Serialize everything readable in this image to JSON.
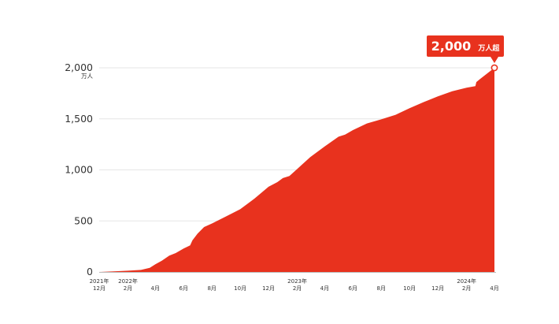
{
  "chart_data": {
    "type": "area",
    "title": "",
    "xlabel": "",
    "ylabel": "",
    "y_unit": "万人",
    "ylim": [
      0,
      2000
    ],
    "y_ticks": [
      {
        "value": 0,
        "label": "0"
      },
      {
        "value": 500,
        "label": "500"
      },
      {
        "value": 1000,
        "label": "1,000"
      },
      {
        "value": 1500,
        "label": "1,500"
      },
      {
        "value": 2000,
        "label": "2,000"
      }
    ],
    "x_ticks": [
      {
        "date": "2021-12",
        "lines": [
          "2021年",
          "12月"
        ]
      },
      {
        "date": "2022-02",
        "lines": [
          "2022年",
          "2月"
        ]
      },
      {
        "date": "2022-04",
        "lines": [
          "4月"
        ]
      },
      {
        "date": "2022-06",
        "lines": [
          "6月"
        ]
      },
      {
        "date": "2022-08",
        "lines": [
          "8月"
        ]
      },
      {
        "date": "2022-10",
        "lines": [
          "10月"
        ]
      },
      {
        "date": "2022-12",
        "lines": [
          "12月"
        ]
      },
      {
        "date": "2023-02",
        "lines": [
          "2023年",
          "2月"
        ]
      },
      {
        "date": "2023-04",
        "lines": [
          "4月"
        ]
      },
      {
        "date": "2023-06",
        "lines": [
          "6月"
        ]
      },
      {
        "date": "2023-08",
        "lines": [
          "8月"
        ]
      },
      {
        "date": "2023-10",
        "lines": [
          "10月"
        ]
      },
      {
        "date": "2023-12",
        "lines": [
          "12月"
        ]
      },
      {
        "date": "2024-02",
        "lines": [
          "2024年",
          "2月"
        ]
      },
      {
        "date": "2024-04",
        "lines": [
          "4月"
        ]
      }
    ],
    "grid": true,
    "color": "#e8321e",
    "points": [
      {
        "x": "2021-12-01",
        "y": 0
      },
      {
        "x": "2022-01-01",
        "y": 6
      },
      {
        "x": "2022-02-01",
        "y": 12
      },
      {
        "x": "2022-03-01",
        "y": 20
      },
      {
        "x": "2022-03-20",
        "y": 40
      },
      {
        "x": "2022-04-01",
        "y": 75
      },
      {
        "x": "2022-04-15",
        "y": 110
      },
      {
        "x": "2022-05-01",
        "y": 160
      },
      {
        "x": "2022-05-15",
        "y": 185
      },
      {
        "x": "2022-06-01",
        "y": 230
      },
      {
        "x": "2022-06-15",
        "y": 260
      },
      {
        "x": "2022-06-20",
        "y": 310
      },
      {
        "x": "2022-07-01",
        "y": 375
      },
      {
        "x": "2022-07-15",
        "y": 440
      },
      {
        "x": "2022-08-01",
        "y": 475
      },
      {
        "x": "2022-09-01",
        "y": 545
      },
      {
        "x": "2022-10-01",
        "y": 615
      },
      {
        "x": "2022-11-01",
        "y": 720
      },
      {
        "x": "2022-12-01",
        "y": 835
      },
      {
        "x": "2022-12-20",
        "y": 880
      },
      {
        "x": "2023-01-01",
        "y": 920
      },
      {
        "x": "2023-01-15",
        "y": 940
      },
      {
        "x": "2023-02-01",
        "y": 1010
      },
      {
        "x": "2023-03-01",
        "y": 1125
      },
      {
        "x": "2023-04-01",
        "y": 1230
      },
      {
        "x": "2023-05-01",
        "y": 1325
      },
      {
        "x": "2023-05-15",
        "y": 1345
      },
      {
        "x": "2023-06-01",
        "y": 1390
      },
      {
        "x": "2023-07-01",
        "y": 1455
      },
      {
        "x": "2023-08-01",
        "y": 1495
      },
      {
        "x": "2023-09-01",
        "y": 1540
      },
      {
        "x": "2023-10-01",
        "y": 1605
      },
      {
        "x": "2023-11-01",
        "y": 1665
      },
      {
        "x": "2023-12-01",
        "y": 1720
      },
      {
        "x": "2024-01-01",
        "y": 1770
      },
      {
        "x": "2024-02-01",
        "y": 1805
      },
      {
        "x": "2024-02-20",
        "y": 1820
      },
      {
        "x": "2024-02-22",
        "y": 1860
      },
      {
        "x": "2024-03-01",
        "y": 1890
      },
      {
        "x": "2024-04-01",
        "y": 2000
      }
    ],
    "callout": {
      "number": "2,000",
      "unit": "万人超"
    }
  }
}
